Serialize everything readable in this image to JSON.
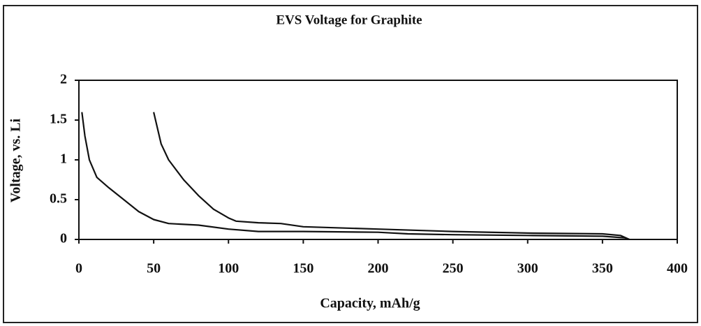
{
  "chart_data": {
    "type": "line",
    "title": "EVS Voltage for Graphite",
    "xlabel": "Capacity, mAh/g",
    "ylabel": "Voltage, vs. Li",
    "xlim": [
      0,
      400
    ],
    "xticks": [
      0,
      50,
      100,
      150,
      200,
      250,
      300,
      350,
      400
    ],
    "ylim": [
      0,
      2
    ],
    "yticks": [
      0,
      0.5,
      1,
      1.5,
      2
    ],
    "grid": false,
    "series": [
      {
        "color": "#111111",
        "x": [
          2,
          4,
          7,
          12,
          20,
          30,
          40,
          50,
          60,
          80,
          100,
          120,
          150,
          200,
          220,
          250,
          300,
          350,
          365,
          368
        ],
        "values": [
          1.6,
          1.3,
          1.0,
          0.78,
          0.65,
          0.5,
          0.35,
          0.25,
          0.2,
          0.18,
          0.13,
          0.1,
          0.1,
          0.09,
          0.07,
          0.06,
          0.05,
          0.04,
          0.02,
          0
        ]
      },
      {
        "color": "#111111",
        "x": [
          50,
          55,
          60,
          70,
          80,
          90,
          100,
          105,
          120,
          135,
          150,
          200,
          250,
          300,
          350,
          362,
          368
        ],
        "values": [
          1.6,
          1.2,
          1.0,
          0.75,
          0.55,
          0.38,
          0.27,
          0.23,
          0.21,
          0.2,
          0.16,
          0.13,
          0.1,
          0.08,
          0.07,
          0.05,
          0
        ]
      }
    ]
  }
}
